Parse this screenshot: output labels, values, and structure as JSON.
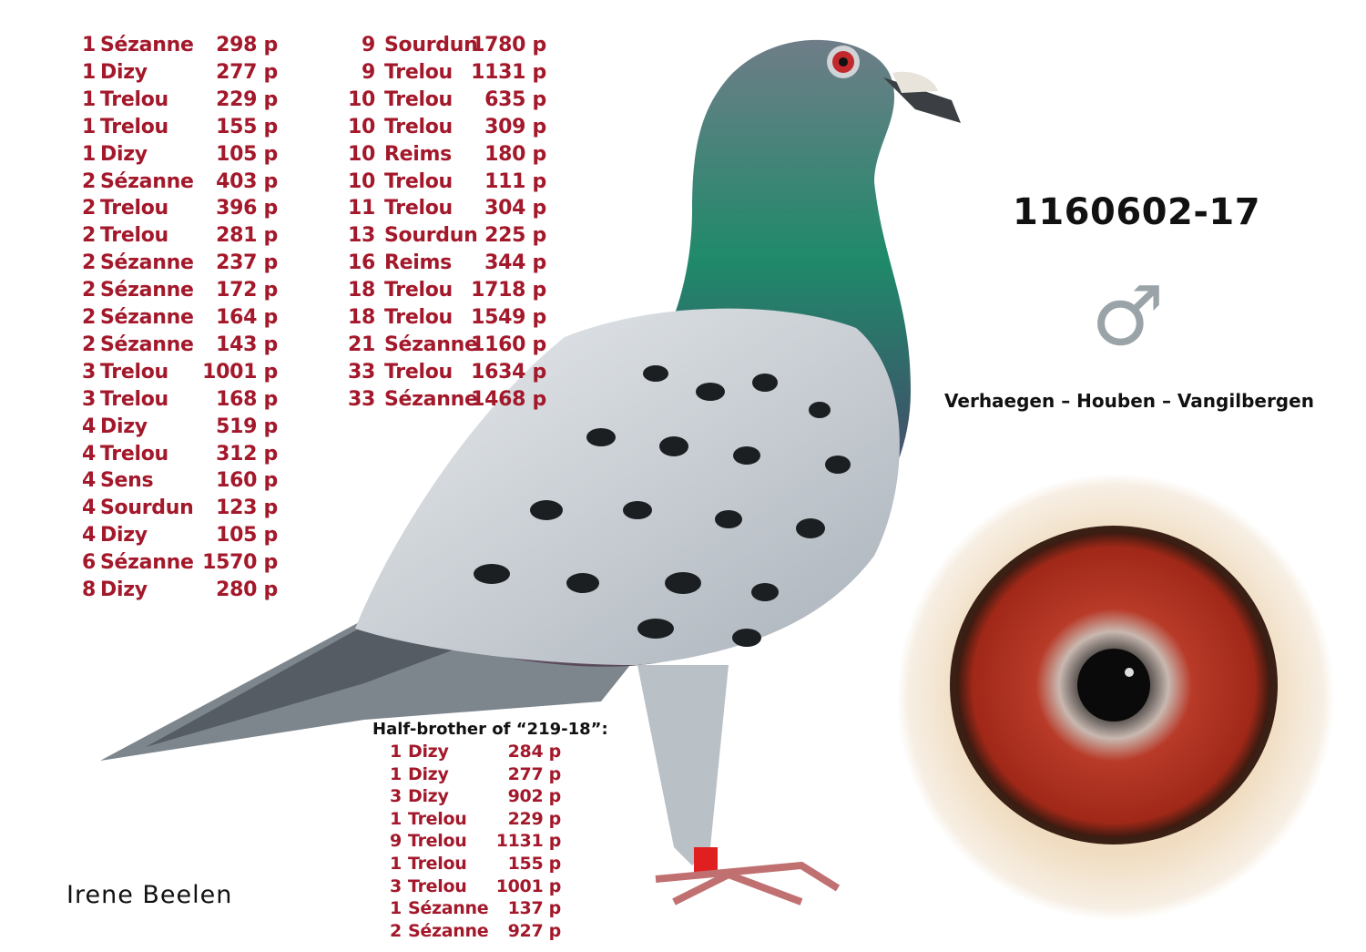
{
  "results_col1": [
    [
      "1",
      "Sézanne",
      "298 p"
    ],
    [
      "1",
      "Dizy",
      "277 p"
    ],
    [
      "1",
      "Trelou",
      "229 p"
    ],
    [
      "1",
      "Trelou",
      "155 p"
    ],
    [
      "1",
      "Dizy",
      "105 p"
    ],
    [
      "2",
      "Sézanne",
      "403 p"
    ],
    [
      "2",
      "Trelou",
      "396 p"
    ],
    [
      "2",
      "Trelou",
      "281 p"
    ],
    [
      "2",
      "Sézanne",
      "237 p"
    ],
    [
      "2",
      "Sézanne",
      "172 p"
    ],
    [
      "2",
      "Sézanne",
      "164 p"
    ],
    [
      "2",
      "Sézanne",
      "143 p"
    ],
    [
      "3",
      "Trelou",
      "1001 p"
    ],
    [
      "3",
      "Trelou",
      "168 p"
    ],
    [
      "4",
      "Dizy",
      "519 p"
    ],
    [
      "4",
      "Trelou",
      "312 p"
    ],
    [
      "4",
      "Sens",
      "160 p"
    ],
    [
      "4",
      "Sourdun",
      "123 p"
    ],
    [
      "4",
      "Dizy",
      "105 p"
    ],
    [
      "6",
      "Sézanne",
      "1570 p"
    ],
    [
      "8",
      "Dizy",
      "280 p"
    ]
  ],
  "results_col2": [
    [
      "9",
      "Sourdun",
      "1780 p"
    ],
    [
      "9",
      "Trelou",
      "1131 p"
    ],
    [
      "10",
      "Trelou",
      "635 p"
    ],
    [
      "10",
      "Trelou",
      "309 p"
    ],
    [
      "10",
      "Reims",
      "180 p"
    ],
    [
      "10",
      "Trelou",
      "111 p"
    ],
    [
      "11",
      "Trelou",
      "304 p"
    ],
    [
      "13",
      "Sourdun",
      "225 p"
    ],
    [
      "16",
      "Reims",
      "344 p"
    ],
    [
      "18",
      "Trelou",
      "1718 p"
    ],
    [
      "18",
      "Trelou",
      "1549 p"
    ],
    [
      "21",
      "Sézanne",
      "1160 p"
    ],
    [
      "33",
      "Trelou",
      "1634 p"
    ],
    [
      "33",
      "Sézanne",
      "1468 p"
    ]
  ],
  "half_brother": {
    "title": "Half-brother of “219-18”:",
    "results": [
      [
        "1",
        "Dizy",
        "284 p"
      ],
      [
        "1",
        "Dizy",
        "277 p"
      ],
      [
        "3",
        "Dizy",
        "902 p"
      ],
      [
        "1",
        "Trelou",
        "229 p"
      ],
      [
        "9",
        "Trelou",
        "1131 p"
      ],
      [
        "1",
        "Trelou",
        "155 p"
      ],
      [
        "3",
        "Trelou",
        "1001 p"
      ],
      [
        "1",
        "Sézanne",
        "137 p"
      ],
      [
        "2",
        "Sézanne",
        "927 p"
      ]
    ]
  },
  "ring_number": "1160602-17",
  "sex_symbol": "♂",
  "breeder": "Verhaegen – Houben – Vangilbergen",
  "owner": "Irene Beelen",
  "colors": {
    "results": "#a3182a",
    "text": "#111111",
    "sex_symbol": "#9aa3a8"
  }
}
